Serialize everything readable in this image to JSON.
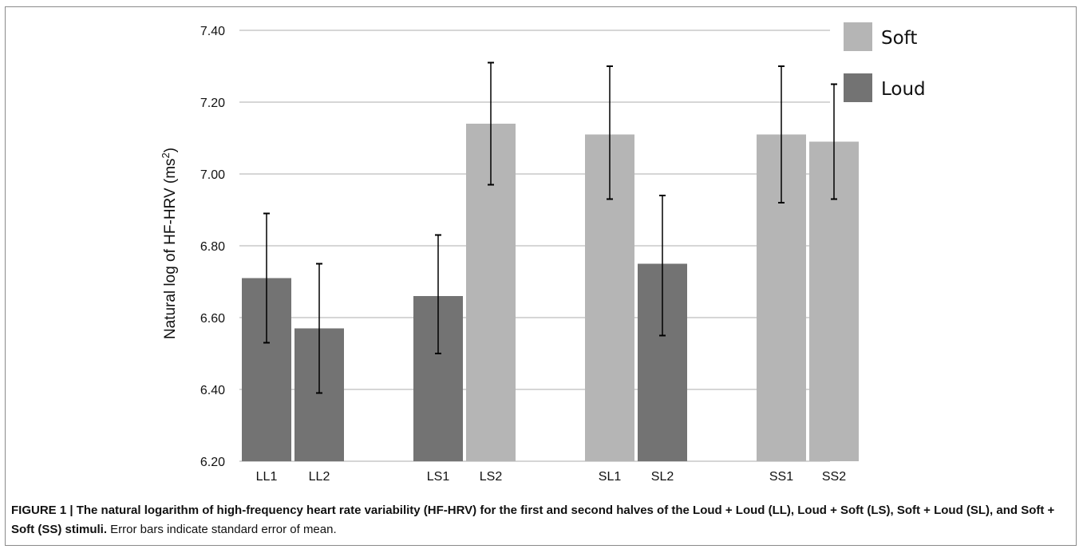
{
  "chart_data": {
    "type": "bar",
    "categories": [
      "LL1",
      "LL2",
      "LS1",
      "LS2",
      "SL1",
      "SL2",
      "SS1",
      "SS2"
    ],
    "groups": [
      [
        "LL1",
        "LL2"
      ],
      [
        "LS1",
        "LS2"
      ],
      [
        "SL1",
        "SL2"
      ],
      [
        "SS1",
        "SS2"
      ]
    ],
    "values": [
      6.71,
      6.57,
      6.66,
      7.14,
      7.11,
      6.75,
      7.11,
      7.09
    ],
    "error_low": [
      6.53,
      6.39,
      6.5,
      6.97,
      6.93,
      6.55,
      6.92,
      6.93
    ],
    "error_high": [
      6.89,
      6.75,
      6.83,
      7.31,
      7.3,
      6.94,
      7.3,
      7.25
    ],
    "bar_series": [
      "Loud",
      "Loud",
      "Loud",
      "Soft",
      "Soft",
      "Loud",
      "Soft",
      "Soft"
    ],
    "series": [
      {
        "name": "Soft",
        "color": "#b5b5b5"
      },
      {
        "name": "Loud",
        "color": "#737373"
      }
    ],
    "ylabel_pre": "Natural log of HF-HRV (ms",
    "ylabel_sup": "2",
    "ylabel_post": ")",
    "ylim": [
      6.2,
      7.4
    ],
    "yticks": [
      "6.20",
      "6.40",
      "6.60",
      "6.80",
      "7.00",
      "7.20",
      "7.40"
    ],
    "grid": true,
    "legend_position": "top-right"
  },
  "caption": {
    "bold": "FIGURE 1 | The natural logarithm of high-frequency heart rate variability (HF-HRV) for the first and second halves of the Loud + Loud (LL), Loud + Soft (LS), Soft + Loud (SL), and Soft + Soft (SS) stimuli.",
    "normal": " Error bars indicate standard error of mean."
  }
}
